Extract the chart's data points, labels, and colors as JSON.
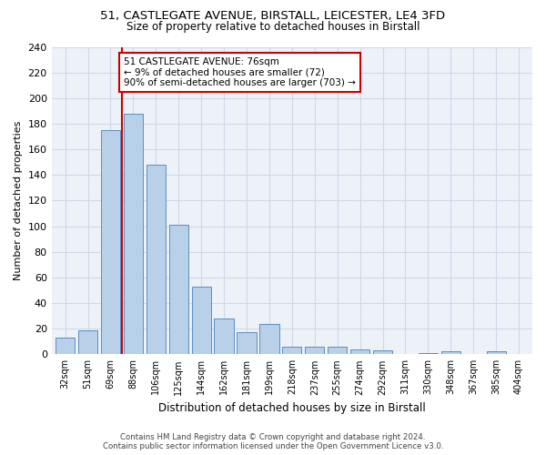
{
  "title_line1": "51, CASTLEGATE AVENUE, BIRSTALL, LEICESTER, LE4 3FD",
  "title_line2": "Size of property relative to detached houses in Birstall",
  "xlabel": "Distribution of detached houses by size in Birstall",
  "ylabel": "Number of detached properties",
  "categories": [
    "32sqm",
    "51sqm",
    "69sqm",
    "88sqm",
    "106sqm",
    "125sqm",
    "144sqm",
    "162sqm",
    "181sqm",
    "199sqm",
    "218sqm",
    "237sqm",
    "255sqm",
    "274sqm",
    "292sqm",
    "311sqm",
    "330sqm",
    "348sqm",
    "367sqm",
    "385sqm",
    "404sqm"
  ],
  "values": [
    13,
    19,
    175,
    188,
    148,
    101,
    53,
    28,
    17,
    24,
    6,
    6,
    6,
    4,
    3,
    0,
    1,
    2,
    0,
    2,
    0
  ],
  "bar_color": "#b8d0e8",
  "bar_edge_color": "#5b8ec4",
  "vline_x": 2.5,
  "vline_color": "#cc0000",
  "annotation_text": "51 CASTLEGATE AVENUE: 76sqm\n← 9% of detached houses are smaller (72)\n90% of semi-detached houses are larger (703) →",
  "annotation_box_color": "#ffffff",
  "annotation_box_edge_color": "#cc0000",
  "ylim": [
    0,
    240
  ],
  "yticks": [
    0,
    20,
    40,
    60,
    80,
    100,
    120,
    140,
    160,
    180,
    200,
    220,
    240
  ],
  "grid_color": "#d0d8e8",
  "bg_color": "#edf1f8",
  "footer_line1": "Contains HM Land Registry data © Crown copyright and database right 2024.",
  "footer_line2": "Contains public sector information licensed under the Open Government Licence v3.0."
}
